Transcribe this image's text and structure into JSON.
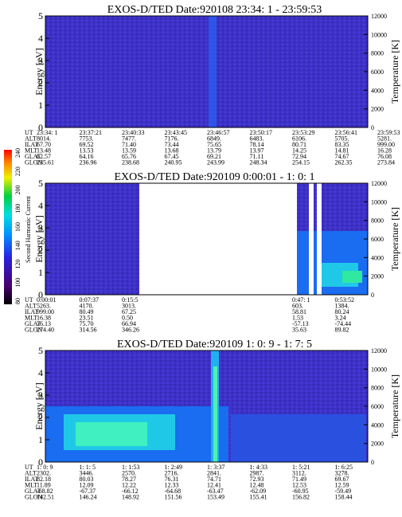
{
  "colorbar": {
    "label": "Second Harmonic Current",
    "lim": [
      80,
      240
    ],
    "ticks": [
      80,
      100,
      120,
      140,
      160,
      180,
      200,
      220,
      240
    ]
  },
  "panels": [
    {
      "title": "EXOS-D/TED  Date:920108  23:34: 1 - 23:59:53",
      "ylabel": "Energy [eV]",
      "y2label": "Temperature [K]",
      "ylim": [
        0,
        5
      ],
      "yticks": [
        0,
        1,
        2,
        3,
        4,
        5
      ],
      "y2lim": [
        0,
        12000
      ],
      "y2ticks": [
        0,
        2000,
        4000,
        6000,
        8000,
        10000,
        12000
      ],
      "rows": [
        {
          "label": "UT",
          "values": [
            "23:34: 1",
            "23:37:21",
            "23:40:33",
            "23:43:45",
            "23:46:57",
            "23:50:17",
            "23:53:29",
            "23:56:41",
            "23:59:53"
          ]
        },
        {
          "label": "ALT",
          "values": [
            "8014.",
            "7753.",
            "7477.",
            "7176.",
            "6849.",
            "6483.",
            "6106.",
            "5705.",
            "5281."
          ]
        },
        {
          "label": "ILAT",
          "values": [
            "67.70",
            "69.52",
            "71.40",
            "73.44",
            "75.65",
            "78.14",
            "80.71",
            "83.35",
            "999.00"
          ]
        },
        {
          "label": "MLT",
          "values": [
            "13.48",
            "13.53",
            "13.59",
            "13.68",
            "13.79",
            "13.97",
            "14.25",
            "14.81",
            "16.28"
          ]
        },
        {
          "label": "GLAT",
          "values": [
            "62.57",
            "64.16",
            "65.76",
            "67.45",
            "69.21",
            "71.11",
            "72.94",
            "74.67",
            "76.08"
          ]
        },
        {
          "label": "GLON",
          "values": [
            "235.61",
            "236.96",
            "238.68",
            "240.95",
            "243.99",
            "248.34",
            "254.15",
            "262.35",
            "273.84"
          ]
        }
      ]
    },
    {
      "title": "EXOS-D/TED  Date:920109  0:00:01 - 1: 0: 1",
      "ylabel": "Energy [eV]",
      "y2label": "Temperature [K]",
      "ylim": [
        0,
        5
      ],
      "yticks": [
        0,
        1,
        2,
        3,
        4,
        5
      ],
      "y2lim": [
        0,
        12000
      ],
      "y2ticks": [
        0,
        2000,
        4000,
        6000,
        8000,
        10000,
        12000
      ],
      "rows": [
        {
          "label": "UT",
          "values": [
            "0:00:01",
            "0:07:37",
            "0:15:5",
            null,
            null,
            null,
            "0:47: 1",
            "0:53:52",
            null
          ]
        },
        {
          "label": "ALT",
          "values": [
            "5263.",
            "4170.",
            "3013.",
            null,
            null,
            null,
            "603.",
            "1384.",
            null
          ]
        },
        {
          "label": "ILAT",
          "values": [
            "999.00",
            "80.49",
            "67.25",
            null,
            null,
            null,
            "58.81",
            "80.24",
            null
          ]
        },
        {
          "label": "MLT",
          "values": [
            "16.38",
            "23.51",
            "0.50",
            null,
            null,
            null,
            "1.53",
            "3.24",
            null
          ]
        },
        {
          "label": "GLAT",
          "values": [
            "76.13",
            "75.70",
            "66.94",
            null,
            null,
            null,
            "-57.13",
            "-74.44",
            null
          ]
        },
        {
          "label": "GLON",
          "values": [
            "274.40",
            "314.56",
            "346.26",
            null,
            null,
            null,
            "35.63",
            "89.82",
            null
          ]
        }
      ]
    },
    {
      "title": "EXOS-D/TED  Date:920109  1: 0: 9 - 1: 7: 5",
      "ylabel": "Energy [eV]",
      "y2label": "Temperature [K]",
      "ylim": [
        0,
        5
      ],
      "yticks": [
        0,
        1,
        2,
        3,
        4,
        5
      ],
      "y2lim": [
        0,
        12000
      ],
      "y2ticks": [
        0,
        2000,
        4000,
        6000,
        8000,
        10000,
        12000
      ],
      "rows": [
        {
          "label": "UT",
          "values": [
            "1: 0: 9",
            "1: 1: 5",
            "1: 1:53",
            "1: 2:49",
            "1: 3:37",
            "1: 4:33",
            "1: 5:21",
            "1: 6:25",
            null
          ]
        },
        {
          "label": "ALT",
          "values": [
            "2302.",
            "3446.",
            "2570.",
            "2716.",
            "2841.",
            "2987.",
            "3112.",
            "3278.",
            null
          ]
        },
        {
          "label": "ILAT",
          "values": [
            "82.18",
            "80.03",
            "78.27",
            "76.31",
            "74.71",
            "72.93",
            "71.49",
            "69.67",
            null
          ]
        },
        {
          "label": "MLT",
          "values": [
            "11.89",
            "12.09",
            "12.22",
            "12.33",
            "12.41",
            "12.48",
            "12.53",
            "12.59",
            null
          ]
        },
        {
          "label": "GLAT",
          "values": [
            "-68.82",
            "-67.37",
            "-66.12",
            "-64.68",
            "-63.47",
            "-62.09",
            "-60.95",
            "-59.49",
            null
          ]
        },
        {
          "label": "GLON",
          "values": [
            "142.51",
            "146.24",
            "148.92",
            "151.56",
            "153.49",
            "155.41",
            "156.82",
            "158.44",
            null
          ]
        }
      ]
    }
  ]
}
